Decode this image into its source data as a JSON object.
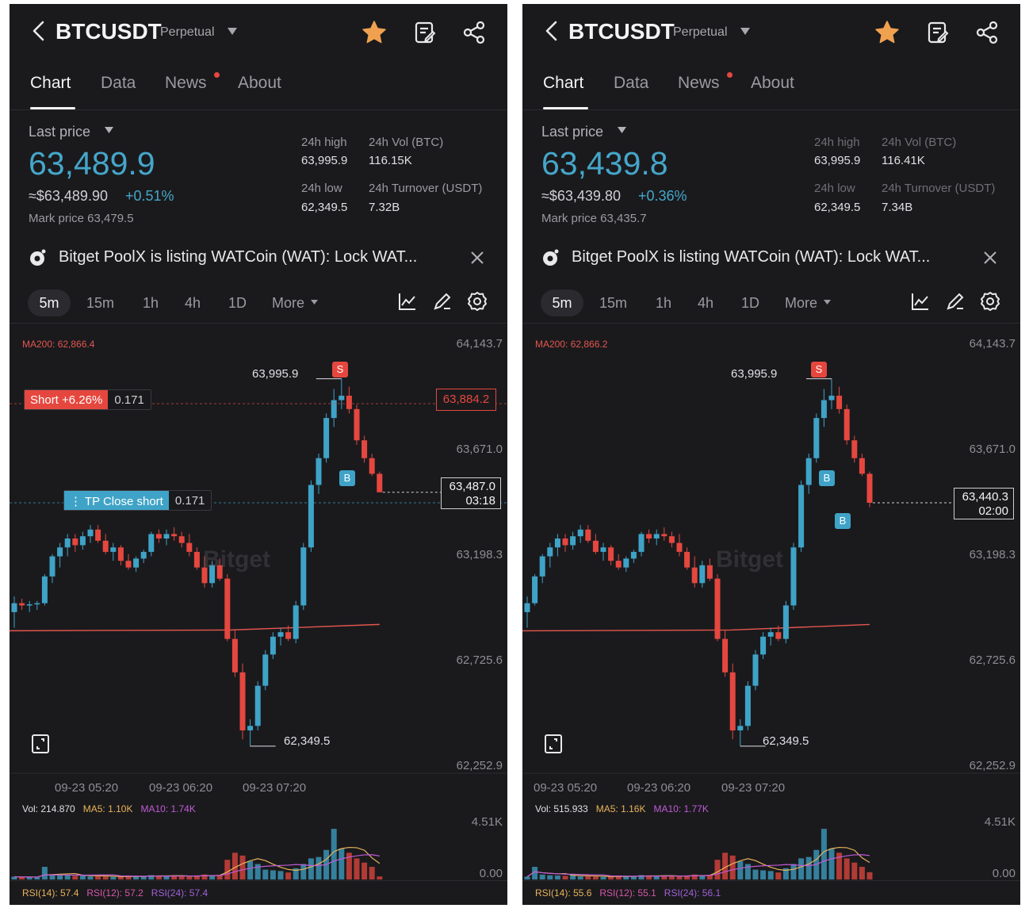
{
  "colors": {
    "up": "#3fa3c7",
    "down": "#e5473f",
    "ma200": "#e5564e",
    "ma5": "#e8b35a",
    "ma10": "#c15ad6",
    "rsi14": "#e8b35a",
    "rsi12": "#d657a8",
    "rsi24": "#a261d8"
  },
  "panels": [
    {
      "pair": "BTCUSDT",
      "type": "Perpetual",
      "tabs": [
        "Chart",
        "Data",
        "News",
        "About"
      ],
      "last_price_label": "Last price",
      "last_price": "63,489.9",
      "usd_price": "≈$63,489.90",
      "change": "+0.51%",
      "mark_price": "Mark price  63,479.5",
      "stats": {
        "high_label": "24h high",
        "high": "63,995.9",
        "vol_label": "24h Vol (BTC)",
        "vol": "116.15K",
        "low_label": "24h low",
        "low": "62,349.5",
        "turnover_label": "24h Turnover (USDT)",
        "turnover": "7.32B"
      },
      "banner": "Bitget PoolX is listing WATCoin (WAT): Lock WAT...",
      "intervals": [
        "5m",
        "15m",
        "1h",
        "4h",
        "1D",
        "More"
      ],
      "ma200": "MA200: 62,866.4",
      "y_labels": [
        "64,143.7",
        "63,671.0",
        "63,198.3",
        "62,725.6",
        "62,252.9"
      ],
      "x_labels": [
        "09-23 05:20",
        "09-23 06:20",
        "09-23 07:20"
      ],
      "high_marker": "63,995.9",
      "low_marker": "62,349.5",
      "short_label": "Short +6.26%",
      "short_qty": "0.171",
      "tp_label": "TP Close short",
      "tp_qty": "0.171",
      "red_price": "63,884.2",
      "current_price": "63,487.0",
      "countdown": "03:18",
      "watermark": "Bitget",
      "vol_info": "Vol: 214.870",
      "ma5": "MA5: 1.10K",
      "ma10": "MA10: 1.74K",
      "vol_max": "4.51K",
      "vol_min": "0.00",
      "rsi14": "RSI(14): 57.4",
      "rsi12": "RSI(12): 57.2",
      "rsi24": "RSI(24): 57.4"
    },
    {
      "pair": "BTCUSDT",
      "type": "Perpetual",
      "tabs": [
        "Chart",
        "Data",
        "News",
        "About"
      ],
      "last_price_label": "Last price",
      "last_price": "63,439.8",
      "usd_price": "≈$63,439.80",
      "change": "+0.36%",
      "mark_price": "Mark price  63,435.7",
      "stats": {
        "high_label": "24h high",
        "high": "63,995.9",
        "vol_label": "24h Vol (BTC)",
        "vol": "116.41K",
        "low_label": "24h low",
        "low": "62,349.5",
        "turnover_label": "24h Turnover (USDT)",
        "turnover": "7.34B"
      },
      "banner": "Bitget PoolX is listing WATCoin (WAT): Lock WAT...",
      "intervals": [
        "5m",
        "15m",
        "1h",
        "4h",
        "1D",
        "More"
      ],
      "ma200": "MA200: 62,866.2",
      "y_labels": [
        "64,143.7",
        "63,671.0",
        "63,198.3",
        "62,725.6",
        "62,252.9"
      ],
      "x_labels": [
        "09-23 05:20",
        "09-23 06:20",
        "09-23 07:20"
      ],
      "high_marker": "63,995.9",
      "low_marker": "62,349.5",
      "current_price": "63,440.3",
      "countdown": "02:00",
      "watermark": "Bitget",
      "vol_info": "Vol: 515.933",
      "ma5": "MA5: 1.16K",
      "ma10": "MA10: 1.77K",
      "vol_max": "4.51K",
      "vol_min": "0.00",
      "rsi14": "RSI(14): 55.6",
      "rsi12": "RSI(12): 55.1",
      "rsi24": "RSI(24): 56.1"
    }
  ],
  "chart_data": [
    {
      "type": "candlestick",
      "ylim": [
        62252.9,
        64143.7
      ],
      "candles": [
        [
          62950,
          63020,
          62880,
          62990
        ],
        [
          62990,
          63010,
          62960,
          62980
        ],
        [
          62980,
          63000,
          62950,
          62985
        ],
        [
          62985,
          63000,
          62960,
          62990
        ],
        [
          62990,
          63120,
          62980,
          63110
        ],
        [
          63110,
          63210,
          63080,
          63200
        ],
        [
          63200,
          63260,
          63150,
          63240
        ],
        [
          63240,
          63300,
          63200,
          63280
        ],
        [
          63280,
          63300,
          63220,
          63250
        ],
        [
          63250,
          63310,
          63230,
          63290
        ],
        [
          63290,
          63340,
          63260,
          63320
        ],
        [
          63320,
          63340,
          63260,
          63270
        ],
        [
          63270,
          63300,
          63210,
          63220
        ],
        [
          63220,
          63260,
          63180,
          63240
        ],
        [
          63240,
          63250,
          63160,
          63180
        ],
        [
          63180,
          63210,
          63140,
          63150
        ],
        [
          63150,
          63200,
          63130,
          63190
        ],
        [
          63190,
          63230,
          63170,
          63220
        ],
        [
          63220,
          63310,
          63200,
          63300
        ],
        [
          63300,
          63320,
          63260,
          63280
        ],
        [
          63280,
          63320,
          63250,
          63300
        ],
        [
          63300,
          63330,
          63270,
          63290
        ],
        [
          63290,
          63310,
          63240,
          63260
        ],
        [
          63260,
          63300,
          63200,
          63220
        ],
        [
          63220,
          63240,
          63140,
          63150
        ],
        [
          63150,
          63200,
          63060,
          63080
        ],
        [
          63080,
          63180,
          63060,
          63160
        ],
        [
          63160,
          63190,
          63090,
          63100
        ],
        [
          63100,
          63120,
          62820,
          62830
        ],
        [
          62830,
          62870,
          62660,
          62680
        ],
        [
          62680,
          62720,
          62380,
          62420
        ],
        [
          62420,
          62470,
          62349.5,
          62440
        ],
        [
          62440,
          62640,
          62420,
          62620
        ],
        [
          62620,
          62780,
          62600,
          62760
        ],
        [
          62760,
          62860,
          62740,
          62840
        ],
        [
          62840,
          62880,
          62800,
          62860
        ],
        [
          62860,
          62890,
          62820,
          62830
        ],
        [
          62830,
          63000,
          62810,
          62980
        ],
        [
          62980,
          63260,
          62960,
          63240
        ],
        [
          63240,
          63540,
          63220,
          63520
        ],
        [
          63520,
          63660,
          63480,
          63640
        ],
        [
          63640,
          63840,
          63620,
          63820
        ],
        [
          63820,
          63950,
          63780,
          63900
        ],
        [
          63900,
          63995.9,
          63860,
          63920
        ],
        [
          63920,
          63960,
          63840,
          63860
        ],
        [
          63860,
          63880,
          63700,
          63720
        ],
        [
          63720,
          63740,
          63620,
          63640
        ],
        [
          63640,
          63660,
          63560,
          63570
        ],
        [
          63570,
          63580,
          63490,
          63487
        ]
      ],
      "ma200": [
        62866.4
      ],
      "volume_ylim": [
        0,
        4510
      ],
      "volume": [
        200,
        150,
        180,
        160,
        900,
        350,
        300,
        280,
        260,
        320,
        220,
        240,
        210,
        190,
        200,
        260,
        210,
        230,
        310,
        280,
        250,
        260,
        240,
        200,
        280,
        350,
        300,
        330,
        1400,
        1900,
        1700,
        1300,
        1100,
        700,
        650,
        600,
        500,
        800,
        1100,
        1500,
        1600,
        2100,
        3600,
        2200,
        1900,
        1500,
        1200,
        900,
        215
      ]
    },
    {
      "type": "candlestick",
      "ylim": [
        62252.9,
        64143.7
      ],
      "candles": [
        [
          62950,
          63020,
          62880,
          62990
        ],
        [
          62990,
          63120,
          62980,
          63110
        ],
        [
          63110,
          63210,
          63080,
          63200
        ],
        [
          63200,
          63260,
          63150,
          63240
        ],
        [
          63240,
          63300,
          63200,
          63280
        ],
        [
          63280,
          63300,
          63220,
          63250
        ],
        [
          63250,
          63310,
          63230,
          63290
        ],
        [
          63290,
          63340,
          63260,
          63320
        ],
        [
          63320,
          63340,
          63260,
          63270
        ],
        [
          63270,
          63300,
          63210,
          63220
        ],
        [
          63220,
          63260,
          63180,
          63240
        ],
        [
          63240,
          63250,
          63160,
          63180
        ],
        [
          63180,
          63210,
          63140,
          63150
        ],
        [
          63150,
          63200,
          63130,
          63190
        ],
        [
          63190,
          63230,
          63170,
          63220
        ],
        [
          63220,
          63310,
          63200,
          63300
        ],
        [
          63300,
          63320,
          63260,
          63280
        ],
        [
          63280,
          63320,
          63250,
          63300
        ],
        [
          63300,
          63330,
          63270,
          63290
        ],
        [
          63290,
          63310,
          63240,
          63260
        ],
        [
          63260,
          63300,
          63200,
          63220
        ],
        [
          63220,
          63240,
          63140,
          63150
        ],
        [
          63150,
          63200,
          63060,
          63080
        ],
        [
          63080,
          63180,
          63060,
          63160
        ],
        [
          63160,
          63190,
          63090,
          63100
        ],
        [
          63100,
          63120,
          62820,
          62830
        ],
        [
          62830,
          62870,
          62660,
          62680
        ],
        [
          62680,
          62720,
          62380,
          62420
        ],
        [
          62420,
          62470,
          62349.5,
          62440
        ],
        [
          62440,
          62640,
          62420,
          62620
        ],
        [
          62620,
          62780,
          62600,
          62760
        ],
        [
          62760,
          62860,
          62740,
          62840
        ],
        [
          62840,
          62880,
          62800,
          62860
        ],
        [
          62860,
          62890,
          62820,
          62830
        ],
        [
          62830,
          63000,
          62810,
          62980
        ],
        [
          62980,
          63260,
          62960,
          63240
        ],
        [
          63240,
          63540,
          63220,
          63520
        ],
        [
          63520,
          63660,
          63480,
          63640
        ],
        [
          63640,
          63840,
          63620,
          63820
        ],
        [
          63820,
          63950,
          63780,
          63900
        ],
        [
          63900,
          63995.9,
          63860,
          63920
        ],
        [
          63920,
          63960,
          63840,
          63860
        ],
        [
          63860,
          63880,
          63700,
          63720
        ],
        [
          63720,
          63740,
          63620,
          63640
        ],
        [
          63640,
          63660,
          63560,
          63570
        ],
        [
          63570,
          63580,
          63420,
          63440
        ]
      ],
      "ma200": [
        62866.2
      ],
      "volume_ylim": [
        0,
        4510
      ],
      "volume": [
        200,
        900,
        350,
        300,
        280,
        260,
        320,
        220,
        240,
        210,
        190,
        200,
        260,
        210,
        230,
        310,
        280,
        250,
        260,
        240,
        200,
        280,
        350,
        300,
        330,
        1400,
        1900,
        1700,
        1300,
        1100,
        700,
        650,
        600,
        500,
        800,
        1100,
        1500,
        1600,
        2100,
        3600,
        2200,
        1900,
        1500,
        1200,
        900,
        516
      ]
    }
  ]
}
